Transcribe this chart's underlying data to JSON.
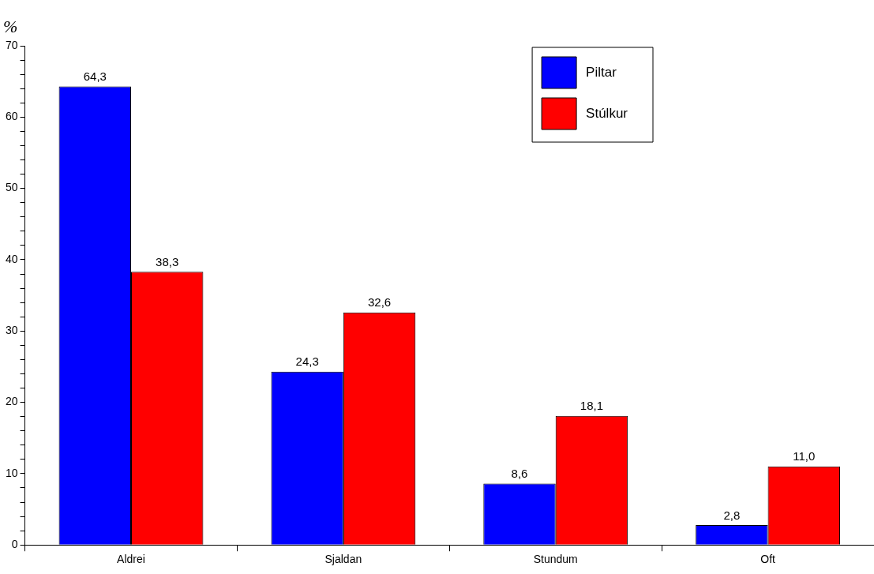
{
  "chart_data": {
    "type": "bar",
    "ylabel": "%",
    "categories": [
      "Aldrei",
      "Sjaldan",
      "Stundum",
      "Oft"
    ],
    "series": [
      {
        "name": "Piltar",
        "color": "#0000ff",
        "values": [
          64.3,
          24.3,
          8.6,
          2.8
        ],
        "value_labels": [
          "64,3",
          "24,3",
          "8,6",
          "2,8"
        ]
      },
      {
        "name": "Stúlkur",
        "color": "#ff0000",
        "values": [
          38.3,
          32.6,
          18.1,
          11.0
        ],
        "value_labels": [
          "38,3",
          "32,6",
          "18,1",
          "11,0"
        ]
      }
    ],
    "ylim": [
      0,
      70
    ],
    "yticks": [
      0,
      {
        "value": 2,
        "label": null
      },
      {
        "value": 4,
        "label": null
      },
      {
        "value": 6,
        "label": null
      },
      {
        "value": 8,
        "label": null
      },
      10,
      {
        "value": 12,
        "label": null
      },
      {
        "value": 14,
        "label": null
      },
      {
        "value": 16,
        "label": null
      },
      {
        "value": 18,
        "label": null
      },
      20,
      {
        "value": 22,
        "label": null
      },
      {
        "value": 24,
        "label": null
      },
      {
        "value": 26,
        "label": null
      },
      {
        "value": 28,
        "label": null
      },
      30,
      {
        "value": 32,
        "label": null
      },
      {
        "value": 34,
        "label": null
      },
      {
        "value": 36,
        "label": null
      },
      {
        "value": 38,
        "label": null
      },
      40,
      {
        "value": 42,
        "label": null
      },
      {
        "value": 44,
        "label": null
      },
      {
        "value": 46,
        "label": null
      },
      {
        "value": 48,
        "label": null
      },
      50,
      {
        "value": 52,
        "label": null
      },
      {
        "value": 54,
        "label": null
      },
      {
        "value": 56,
        "label": null
      },
      {
        "value": 58,
        "label": null
      },
      60,
      {
        "value": 62,
        "label": null
      },
      {
        "value": 64,
        "label": null
      },
      {
        "value": 66,
        "label": null
      },
      {
        "value": 68,
        "label": null
      },
      70
    ],
    "grid": false,
    "legend": "top right"
  }
}
